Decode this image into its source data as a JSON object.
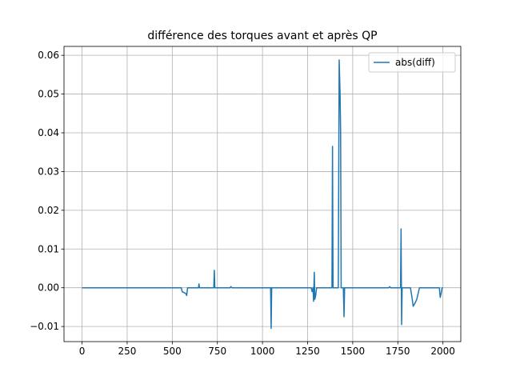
{
  "chart_data": {
    "type": "line",
    "title": "différence des torques avant et après QP",
    "x": [
      0,
      550,
      555,
      575,
      580,
      585,
      645,
      648,
      651,
      730,
      733,
      736,
      820,
      825,
      830,
      1045,
      1048,
      1051,
      1270,
      1275,
      1280,
      1283,
      1287,
      1290,
      1295,
      1300,
      1385,
      1388,
      1391,
      1420,
      1425,
      1430,
      1433,
      1436,
      1448,
      1452,
      1455,
      1700,
      1705,
      1710,
      1765,
      1768,
      1771,
      1774,
      1820,
      1830,
      1835,
      1845,
      1855,
      1865,
      1870,
      1980,
      1985,
      1990,
      1995,
      1999
    ],
    "series": [
      {
        "name": "abs(diff)",
        "color": "#1f77b4",
        "values": [
          0,
          0,
          -0.001,
          -0.0015,
          -0.002,
          0,
          0,
          0.001,
          0,
          0,
          0.0045,
          0,
          0,
          0.0003,
          0,
          0,
          -0.0105,
          0,
          0,
          -0.001,
          0,
          -0.0035,
          0.004,
          -0.003,
          -0.002,
          0,
          0,
          0.0365,
          0,
          0,
          0.0588,
          0.05,
          0.04,
          0,
          0,
          -0.0075,
          0,
          0,
          0.0003,
          0,
          0,
          0.0152,
          -0.0095,
          0,
          0,
          -0.003,
          -0.0048,
          -0.004,
          -0.003,
          -0.001,
          0,
          0,
          -0.0025,
          -0.0015,
          0,
          0
        ]
      }
    ],
    "xlim": [
      -100,
      2099
    ],
    "ylim": [
      -0.0139,
      0.0623
    ],
    "xticks": [
      0,
      250,
      500,
      750,
      1000,
      1250,
      1500,
      1750,
      2000
    ],
    "yticks": [
      {
        "value": -0.01,
        "label": "−0.01"
      },
      {
        "value": 0,
        "label": "0.00"
      },
      0.01,
      0.02,
      0.03,
      0.04,
      0.05,
      0.06
    ],
    "grid": true,
    "legend": "upper right"
  }
}
